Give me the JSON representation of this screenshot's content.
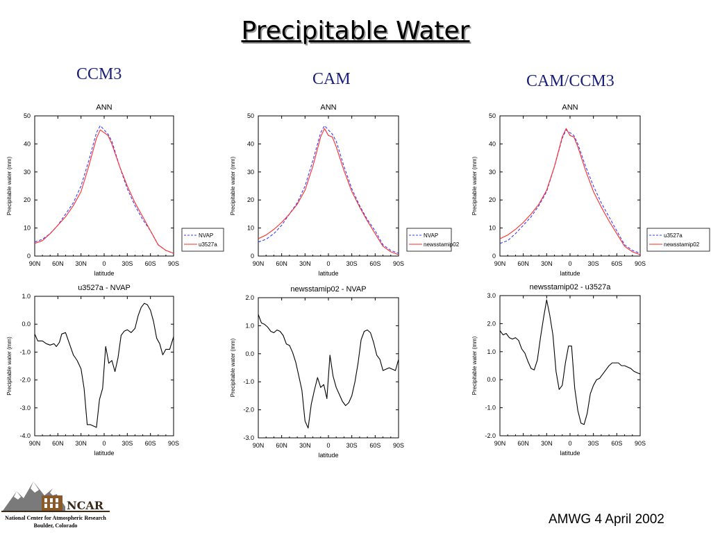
{
  "slide": {
    "title": "Precipitable Water",
    "columns": [
      "CCM3",
      "CAM",
      "CAM/CCM3"
    ],
    "footer": "AMWG 4 April 2002",
    "logo": {
      "name": "NCAR",
      "line1": "National Center for Atmospheric Research",
      "line2": "Boulder, Colorado"
    }
  },
  "colors": {
    "blue_dashed": "#3b3bff",
    "red": "#ff2a2a",
    "black": "#000000",
    "title_blue": "#1a1f7a"
  },
  "chart_data": [
    {
      "id": "ccm3-ann",
      "type": "line",
      "title": "ANN",
      "xlabel": "latitude",
      "ylabel": "Precipitable water (mm)",
      "xlim": [
        90,
        -90
      ],
      "ylim": [
        0,
        50
      ],
      "xticks": [
        90,
        60,
        30,
        0,
        -30,
        -60,
        -90
      ],
      "xticklabels": [
        "90N",
        "60N",
        "30N",
        "0",
        "30S",
        "60S",
        "90S"
      ],
      "yticks": [
        0,
        10,
        20,
        30,
        40,
        50
      ],
      "yticklabels": [
        "0",
        "10",
        "20",
        "30",
        "40",
        "50"
      ],
      "legend": "right",
      "x": [
        90,
        80,
        70,
        60,
        50,
        40,
        30,
        20,
        10,
        5,
        0,
        -5,
        -10,
        -20,
        -30,
        -40,
        -50,
        -60,
        -70,
        -80,
        -90
      ],
      "series": [
        {
          "name": "NVAP",
          "style": "dashed",
          "color": "#3b3bff",
          "values": [
            5,
            6,
            8,
            11,
            15,
            19,
            25,
            34,
            44,
            46.5,
            45,
            43.5,
            41,
            32,
            24,
            18,
            13,
            9,
            4,
            2,
            1
          ]
        },
        {
          "name": "u3527a",
          "style": "solid",
          "color": "#ff2a2a",
          "values": [
            4.5,
            5.5,
            8,
            11,
            14,
            18,
            23,
            32,
            42,
            45,
            44,
            43,
            40,
            32,
            25,
            19,
            14,
            9,
            4,
            2,
            1
          ]
        }
      ]
    },
    {
      "id": "cam-ann",
      "type": "line",
      "title": "ANN",
      "xlabel": "latitude",
      "ylabel": "Precipitable water (mm)",
      "xlim": [
        90,
        -90
      ],
      "ylim": [
        0,
        50
      ],
      "xticks": [
        90,
        60,
        30,
        0,
        -30,
        -60,
        -90
      ],
      "xticklabels": [
        "90N",
        "60N",
        "30N",
        "0",
        "30S",
        "60S",
        "90S"
      ],
      "yticks": [
        0,
        10,
        20,
        30,
        40,
        50
      ],
      "yticklabels": [
        "0",
        "10",
        "20",
        "30",
        "40",
        "50"
      ],
      "legend": "right",
      "x": [
        90,
        80,
        70,
        60,
        50,
        40,
        30,
        20,
        10,
        5,
        0,
        -5,
        -10,
        -20,
        -30,
        -40,
        -50,
        -60,
        -70,
        -80,
        -90
      ],
      "series": [
        {
          "name": "NVAP",
          "style": "dashed",
          "color": "#3b3bff",
          "values": [
            5,
            6,
            8,
            11,
            15,
            19,
            25,
            34,
            44,
            46.5,
            45,
            43.5,
            41,
            32,
            24,
            18,
            13,
            9,
            4,
            2,
            1
          ]
        },
        {
          "name": "newsstamip02",
          "style": "solid",
          "color": "#ff2a2a",
          "values": [
            6.2,
            7.5,
            9.5,
            12,
            15,
            18.5,
            23.5,
            32,
            42.5,
            45.5,
            43,
            42.5,
            39,
            30.5,
            23,
            17.5,
            12.5,
            8,
            3.5,
            1.5,
            0.5
          ]
        }
      ]
    },
    {
      "id": "camccm3-ann",
      "type": "line",
      "title": "ANN",
      "xlabel": "latitude",
      "ylabel": "Precipitable water (mm)",
      "xlim": [
        90,
        -90
      ],
      "ylim": [
        0,
        50
      ],
      "xticks": [
        90,
        60,
        30,
        0,
        -30,
        -60,
        -90
      ],
      "xticklabels": [
        "90N",
        "60N",
        "30N",
        "0",
        "30S",
        "60S",
        "90S"
      ],
      "yticks": [
        0,
        10,
        20,
        30,
        40,
        50
      ],
      "yticklabels": [
        "0",
        "10",
        "20",
        "30",
        "40",
        "50"
      ],
      "legend": "right",
      "x": [
        90,
        80,
        70,
        60,
        50,
        40,
        30,
        20,
        10,
        5,
        0,
        -5,
        -10,
        -20,
        -30,
        -40,
        -50,
        -60,
        -70,
        -80,
        -90
      ],
      "series": [
        {
          "name": "u3527a",
          "style": "dashed",
          "color": "#3b3bff",
          "values": [
            4.5,
            5.5,
            8,
            11,
            14,
            18,
            23,
            32,
            42,
            45,
            44,
            43,
            40,
            32,
            25,
            19,
            14,
            9,
            4,
            2,
            1
          ]
        },
        {
          "name": "newsstamip02",
          "style": "solid",
          "color": "#ff2a2a",
          "values": [
            6.2,
            7.5,
            9.5,
            12,
            15,
            18.5,
            23.5,
            32,
            42.5,
            45.5,
            43,
            42.5,
            39,
            30.5,
            23,
            17.5,
            12.5,
            8,
            3.5,
            1.5,
            0.5
          ]
        }
      ]
    },
    {
      "id": "ccm3-diff",
      "type": "line",
      "title": "u3527a - NVAP",
      "xlabel": "latitude",
      "ylabel": "Precipitable water (mm)",
      "xlim": [
        90,
        -90
      ],
      "ylim": [
        -4,
        1
      ],
      "xticks": [
        90,
        60,
        30,
        0,
        -30,
        -60,
        -90
      ],
      "xticklabels": [
        "90N",
        "60N",
        "30N",
        "0",
        "30S",
        "60S",
        "90S"
      ],
      "yticks": [
        -4,
        -3,
        -2,
        -1,
        0,
        1
      ],
      "yticklabels": [
        "-4.0",
        "-3.0",
        "-2.0",
        "-1.0",
        "0.0",
        "1.0"
      ],
      "x": [
        90,
        86,
        80,
        75,
        70,
        65,
        62,
        58,
        55,
        50,
        45,
        40,
        35,
        30,
        26,
        22,
        18,
        14,
        10,
        6,
        2,
        -2,
        -6,
        -10,
        -14,
        -18,
        -22,
        -26,
        -30,
        -35,
        -40,
        -44,
        -48,
        -52,
        -56,
        -60,
        -64,
        -68,
        -72,
        -76,
        -80,
        -85,
        -90
      ],
      "series": [
        {
          "name": "u3527a - NVAP",
          "style": "solid",
          "color": "#000000",
          "values": [
            -0.35,
            -0.6,
            -0.6,
            -0.7,
            -0.75,
            -0.7,
            -0.8,
            -0.65,
            -0.35,
            -0.3,
            -0.7,
            -1.1,
            -1.3,
            -1.6,
            -2.3,
            -3.6,
            -3.6,
            -3.65,
            -3.7,
            -2.7,
            -2.3,
            -0.8,
            -1.4,
            -1.3,
            -1.7,
            -1.2,
            -0.4,
            -0.25,
            -0.2,
            -0.3,
            -0.15,
            0.3,
            0.6,
            0.75,
            0.7,
            0.5,
            0.1,
            -0.5,
            -0.7,
            -1.1,
            -0.9,
            -0.9,
            -0.45
          ]
        }
      ]
    },
    {
      "id": "cam-diff",
      "type": "line",
      "title": "newsstamip02 - NVAP",
      "xlabel": "latitude",
      "ylabel": "Precipitable water (mm)",
      "xlim": [
        90,
        -90
      ],
      "ylim": [
        -3,
        2
      ],
      "xticks": [
        90,
        60,
        30,
        0,
        -30,
        -60,
        -90
      ],
      "xticklabels": [
        "90N",
        "60N",
        "30N",
        "0",
        "30S",
        "60S",
        "90S"
      ],
      "yticks": [
        -3,
        -2,
        -1,
        0,
        1,
        2
      ],
      "yticklabels": [
        "-3.0",
        "-2.0",
        "-1.0",
        "0.0",
        "1.0",
        "2.0"
      ],
      "x": [
        90,
        86,
        82,
        78,
        74,
        70,
        66,
        62,
        58,
        54,
        50,
        46,
        42,
        38,
        34,
        30,
        26,
        22,
        18,
        14,
        10,
        6,
        2,
        -2,
        -6,
        -10,
        -14,
        -18,
        -22,
        -26,
        -30,
        -34,
        -38,
        -42,
        -46,
        -50,
        -54,
        -58,
        -62,
        -66,
        -70,
        -74,
        -78,
        -82,
        -86,
        -90
      ],
      "series": [
        {
          "name": "newsstamip02 - NVAP",
          "style": "solid",
          "color": "#000000",
          "values": [
            1.4,
            1.1,
            1.05,
            0.95,
            0.8,
            0.75,
            0.85,
            0.8,
            0.65,
            0.35,
            0.3,
            0.05,
            -0.3,
            -0.8,
            -1.3,
            -2.4,
            -2.65,
            -1.8,
            -1.3,
            -0.85,
            -1.2,
            -1.1,
            -1.6,
            -0.05,
            -0.8,
            -1.2,
            -1.45,
            -1.7,
            -1.85,
            -1.75,
            -1.5,
            -1.0,
            -0.35,
            0.5,
            0.8,
            0.85,
            0.75,
            0.4,
            -0.05,
            -0.2,
            -0.6,
            -0.55,
            -0.5,
            -0.55,
            -0.6,
            -0.2
          ]
        }
      ]
    },
    {
      "id": "camccm3-diff",
      "type": "line",
      "title": "newsstamip02 - u3527a",
      "xlabel": "latitude",
      "ylabel": "Precipitable water (mm)",
      "xlim": [
        90,
        -90
      ],
      "ylim": [
        -2,
        3
      ],
      "xticks": [
        90,
        60,
        30,
        0,
        -30,
        -60,
        -90
      ],
      "xticklabels": [
        "90N",
        "60N",
        "30N",
        "0",
        "30S",
        "60S",
        "90S"
      ],
      "yticks": [
        -2,
        -1,
        0,
        1,
        2,
        3
      ],
      "yticklabels": [
        "-2.0",
        "-1.0",
        "0.0",
        "1.0",
        "2.0",
        "3.0"
      ],
      "x": [
        90,
        86,
        82,
        78,
        74,
        70,
        66,
        62,
        58,
        54,
        50,
        46,
        42,
        38,
        34,
        30,
        26,
        22,
        18,
        14,
        10,
        6,
        2,
        -2,
        -6,
        -10,
        -14,
        -18,
        -22,
        -26,
        -30,
        -34,
        -38,
        -42,
        -46,
        -50,
        -54,
        -58,
        -62,
        -66,
        -70,
        -74,
        -78,
        -82,
        -86,
        -90
      ],
      "series": [
        {
          "name": "newsstamip02 - u3527a",
          "style": "solid",
          "color": "#000000",
          "values": [
            1.75,
            1.6,
            1.65,
            1.5,
            1.45,
            1.5,
            1.4,
            1.1,
            0.95,
            0.65,
            0.4,
            0.35,
            0.7,
            1.5,
            2.2,
            2.85,
            2.3,
            1.6,
            0.3,
            -0.35,
            -0.2,
            0.6,
            1.2,
            1.2,
            -0.3,
            -1.1,
            -1.55,
            -1.6,
            -1.2,
            -0.5,
            -0.2,
            0.0,
            0.05,
            0.2,
            0.35,
            0.5,
            0.6,
            0.6,
            0.6,
            0.5,
            0.5,
            0.45,
            0.4,
            0.3,
            0.25,
            0.2
          ]
        }
      ]
    }
  ]
}
